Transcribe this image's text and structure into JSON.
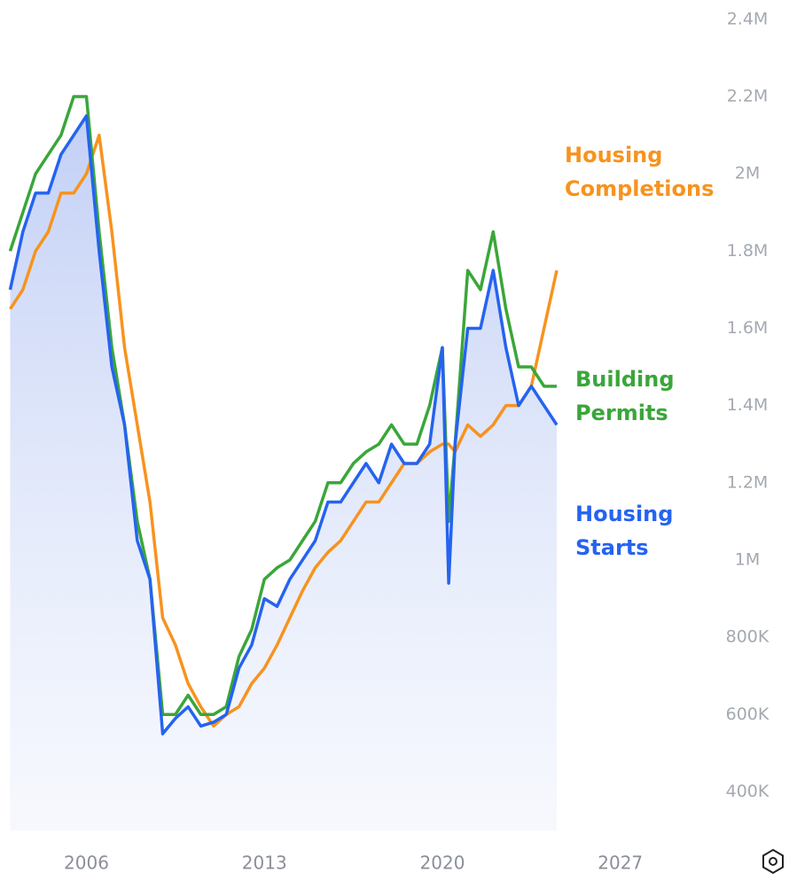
{
  "chart_data": {
    "type": "line",
    "x": [
      2003,
      2003.5,
      2004,
      2004.5,
      2005,
      2005.5,
      2006,
      2006.5,
      2007,
      2007.5,
      2008,
      2008.5,
      2009,
      2009.5,
      2010,
      2010.5,
      2011,
      2011.5,
      2012,
      2012.5,
      2013,
      2013.5,
      2014,
      2014.5,
      2015,
      2015.5,
      2016,
      2016.5,
      2017,
      2017.5,
      2018,
      2018.5,
      2019,
      2019.5,
      2020,
      2020.25,
      2020.5,
      2021,
      2021.5,
      2022,
      2022.5,
      2023,
      2023.5,
      2024,
      2024.5
    ],
    "series": [
      {
        "name": "Housing Completions",
        "color": "#f7931e",
        "values": [
          1650000,
          1700000,
          1800000,
          1850000,
          1950000,
          1950000,
          2000000,
          2100000,
          1850000,
          1550000,
          1350000,
          1150000,
          850000,
          780000,
          680000,
          620000,
          570000,
          600000,
          620000,
          680000,
          720000,
          780000,
          850000,
          920000,
          980000,
          1020000,
          1050000,
          1100000,
          1150000,
          1150000,
          1200000,
          1250000,
          1250000,
          1280000,
          1300000,
          1300000,
          1280000,
          1350000,
          1320000,
          1350000,
          1400000,
          1400000,
          1450000,
          1600000,
          1750000
        ]
      },
      {
        "name": "Building Permits",
        "color": "#3aa63a",
        "values": [
          1800000,
          1900000,
          2000000,
          2050000,
          2100000,
          2200000,
          2200000,
          1850000,
          1550000,
          1350000,
          1100000,
          950000,
          600000,
          600000,
          650000,
          600000,
          600000,
          620000,
          750000,
          820000,
          950000,
          980000,
          1000000,
          1050000,
          1100000,
          1200000,
          1200000,
          1250000,
          1280000,
          1300000,
          1350000,
          1300000,
          1300000,
          1400000,
          1550000,
          1100000,
          1300000,
          1750000,
          1700000,
          1850000,
          1650000,
          1500000,
          1500000,
          1450000,
          1450000
        ]
      },
      {
        "name": "Housing Starts",
        "color": "#2563f0",
        "values": [
          1700000,
          1850000,
          1950000,
          1950000,
          2050000,
          2100000,
          2150000,
          1800000,
          1500000,
          1350000,
          1050000,
          950000,
          550000,
          590000,
          620000,
          570000,
          580000,
          600000,
          720000,
          780000,
          900000,
          880000,
          950000,
          1000000,
          1050000,
          1150000,
          1150000,
          1200000,
          1250000,
          1200000,
          1300000,
          1250000,
          1250000,
          1300000,
          1550000,
          940000,
          1300000,
          1600000,
          1600000,
          1750000,
          1550000,
          1400000,
          1450000,
          1400000,
          1350000
        ]
      }
    ],
    "xlim": [
      2002.6,
      2029.8
    ],
    "xticks": [
      2006,
      2013,
      2020,
      2027
    ],
    "ylim": [
      300000,
      2450000
    ],
    "yticks": [
      {
        "value": 400000,
        "label": "400K"
      },
      {
        "value": 600000,
        "label": "600K"
      },
      {
        "value": 800000,
        "label": "800K"
      },
      {
        "value": 1000000,
        "label": "1M"
      },
      {
        "value": 1200000,
        "label": "1.2M"
      },
      {
        "value": 1400000,
        "label": "1.4M"
      },
      {
        "value": 1600000,
        "label": "1.6M"
      },
      {
        "value": 1800000,
        "label": "1.8M"
      },
      {
        "value": 2000000,
        "label": "2M"
      },
      {
        "value": 2200000,
        "label": "2.2M"
      },
      {
        "value": 2400000,
        "label": "2.4M"
      }
    ]
  }
}
